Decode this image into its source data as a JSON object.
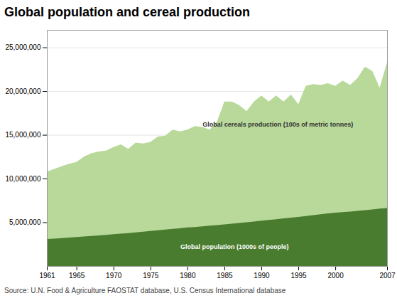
{
  "chart_data": {
    "type": "area",
    "title": "Global population and cereal production",
    "source": "Source: U.N. Food & Agriculture FAOSTAT database, U.S. Census International database",
    "x": [
      1961,
      1962,
      1963,
      1964,
      1965,
      1966,
      1967,
      1968,
      1969,
      1970,
      1971,
      1972,
      1973,
      1974,
      1975,
      1976,
      1977,
      1978,
      1979,
      1980,
      1981,
      1982,
      1983,
      1984,
      1985,
      1986,
      1987,
      1988,
      1989,
      1990,
      1991,
      1992,
      1993,
      1994,
      1995,
      1996,
      1997,
      1998,
      1999,
      2000,
      2001,
      2002,
      2003,
      2004,
      2005,
      2006,
      2007
    ],
    "series": [
      {
        "name": "Global cereals production (100s of metric tonnes)",
        "color": "#b8d99a",
        "values": [
          10800000,
          11100000,
          11400000,
          11700000,
          11900000,
          12500000,
          12900000,
          13100000,
          13200000,
          13600000,
          13900000,
          13400000,
          14100000,
          14000000,
          14200000,
          14800000,
          14900000,
          15600000,
          15400000,
          15600000,
          16000000,
          15900000,
          15600000,
          16500000,
          18800000,
          18800000,
          18400000,
          17700000,
          18800000,
          19500000,
          18800000,
          19500000,
          18800000,
          19600000,
          18500000,
          20600000,
          20800000,
          20700000,
          20900000,
          20600000,
          21200000,
          20700000,
          21500000,
          22800000,
          22300000,
          20400000,
          23300000
        ]
      },
      {
        "name": "Global population (1000s of people)",
        "color": "#4a7c2f",
        "values": [
          3082000,
          3140000,
          3200000,
          3260000,
          3320000,
          3380000,
          3440000,
          3500000,
          3560000,
          3630000,
          3700000,
          3770000,
          3840000,
          3920000,
          4000000,
          4080000,
          4160000,
          4240000,
          4320000,
          4410000,
          4450000,
          4530000,
          4610000,
          4680000,
          4760000,
          4840000,
          4920000,
          5000000,
          5090000,
          5180000,
          5260000,
          5350000,
          5440000,
          5530000,
          5620000,
          5720000,
          5820000,
          5920000,
          6010000,
          6090000,
          6160000,
          6230000,
          6310000,
          6390000,
          6470000,
          6560000,
          6630000
        ]
      }
    ],
    "xlim": [
      1961,
      2007
    ],
    "xticks": [
      1961,
      1965,
      1970,
      1975,
      1980,
      1985,
      1990,
      1995,
      2000,
      2007
    ],
    "ylim": [
      0,
      27000000
    ],
    "yticks": [
      {
        "value": 5000000,
        "label": "5,000,000"
      },
      {
        "value": 10000000,
        "label": "10,000,000"
      },
      {
        "value": 15000000,
        "label": "15,000,000"
      },
      {
        "value": 20000000,
        "label": "20,000,000"
      },
      {
        "value": 25000000,
        "label": "25,000,000"
      }
    ],
    "grid": true,
    "annotations": [
      {
        "text": "Global cereals production (100s of metric tonnes)",
        "x": 1982,
        "y": 16200000,
        "color": "#333333"
      },
      {
        "text": "Global population (1000s of people)",
        "x": 1979,
        "y": 2200000,
        "color": "#ffffff"
      }
    ]
  }
}
